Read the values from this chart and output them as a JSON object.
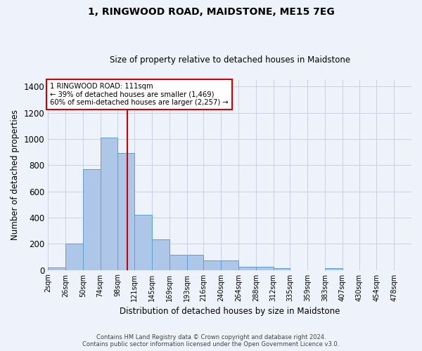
{
  "title": "1, RINGWOOD ROAD, MAIDSTONE, ME15 7EG",
  "subtitle": "Size of property relative to detached houses in Maidstone",
  "xlabel": "Distribution of detached houses by size in Maidstone",
  "ylabel": "Number of detached properties",
  "bar_labels": [
    "2sqm",
    "26sqm",
    "50sqm",
    "74sqm",
    "98sqm",
    "121sqm",
    "145sqm",
    "169sqm",
    "193sqm",
    "216sqm",
    "240sqm",
    "264sqm",
    "288sqm",
    "312sqm",
    "335sqm",
    "359sqm",
    "383sqm",
    "407sqm",
    "430sqm",
    "454sqm",
    "478sqm"
  ],
  "bar_values": [
    20,
    200,
    770,
    1010,
    895,
    420,
    235,
    115,
    115,
    75,
    75,
    25,
    25,
    15,
    0,
    0,
    15,
    0,
    0,
    0,
    0
  ],
  "bar_color": "#aec6e8",
  "bar_edge_color": "#5a9fd4",
  "background_color": "#eef2fb",
  "grid_color": "#c8d0e0",
  "property_line_x": 111,
  "bin_edges": [
    2,
    26,
    50,
    74,
    98,
    121,
    145,
    169,
    193,
    216,
    240,
    264,
    288,
    312,
    335,
    359,
    383,
    407,
    430,
    454,
    478,
    502
  ],
  "annotation_text": "1 RINGWOOD ROAD: 111sqm\n← 39% of detached houses are smaller (1,469)\n60% of semi-detached houses are larger (2,257) →",
  "annotation_box_color": "#ffffff",
  "annotation_box_edge": "#cc0000",
  "vline_color": "#cc0000",
  "footer_line1": "Contains HM Land Registry data © Crown copyright and database right 2024.",
  "footer_line2": "Contains public sector information licensed under the Open Government Licence v3.0.",
  "ylim": [
    0,
    1450
  ],
  "yticks": [
    0,
    200,
    400,
    600,
    800,
    1000,
    1200,
    1400
  ],
  "xlim_left": 2,
  "xlim_right": 502
}
